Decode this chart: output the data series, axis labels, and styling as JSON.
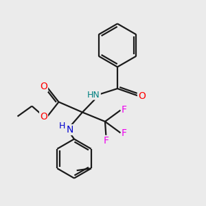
{
  "background_color": "#ebebeb",
  "bond_color": "#1a1a1a",
  "bond_width": 1.6,
  "atom_colors": {
    "O": "#ff0000",
    "N_amide": "#008080",
    "N_amine": "#0000cd",
    "F": "#ee00ee",
    "C": "#1a1a1a"
  },
  "font_size": 9,
  "fig_width": 3.0,
  "fig_height": 3.0,
  "dpi": 100,
  "xlim": [
    0,
    10
  ],
  "ylim": [
    0,
    10
  ]
}
